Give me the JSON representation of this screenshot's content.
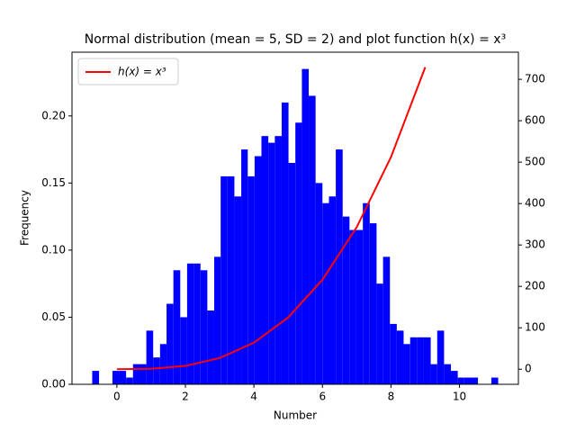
{
  "chart_data": {
    "type": "histogram",
    "title": "Normal distribution (mean = 5, SD = 2) and plot function h(x) = x³",
    "x_label": "Number",
    "y_label": "Frequency",
    "color": "#0000ff",
    "bins": [
      -0.72,
      -0.52,
      -0.33,
      -0.13,
      0.07,
      0.27,
      0.47,
      0.66,
      0.86,
      1.06,
      1.26,
      1.45,
      1.65,
      1.85,
      2.05,
      2.24,
      2.44,
      2.64,
      2.84,
      3.03,
      3.23,
      3.43,
      3.63,
      3.82,
      4.02,
      4.22,
      4.42,
      4.61,
      4.81,
      5.01,
      5.21,
      5.4,
      5.6,
      5.8,
      6.0,
      6.19,
      6.39,
      6.59,
      6.79,
      6.98,
      7.18,
      7.38,
      7.58,
      7.77,
      7.97,
      8.17,
      8.37,
      8.56,
      8.76,
      8.96,
      9.16,
      9.35,
      9.55,
      9.75,
      9.95,
      10.14,
      10.34,
      10.54,
      10.74,
      10.93,
      11.13
    ],
    "values": [
      0.01,
      0,
      0,
      0.01,
      0.01,
      0.005,
      0.015,
      0.015,
      0.04,
      0.02,
      0.03,
      0.06,
      0.085,
      0.05,
      0.09,
      0.09,
      0.085,
      0.055,
      0.095,
      0.155,
      0.155,
      0.14,
      0.175,
      0.155,
      0.17,
      0.185,
      0.18,
      0.185,
      0.21,
      0.165,
      0.195,
      0.235,
      0.215,
      0.15,
      0.135,
      0.14,
      0.175,
      0.125,
      0.115,
      0.115,
      0.135,
      0.12,
      0.075,
      0.095,
      0.045,
      0.04,
      0.03,
      0.035,
      0.035,
      0.035,
      0.015,
      0.04,
      0.015,
      0.01,
      0.005,
      0.005,
      0.005,
      0,
      0,
      0.005
    ],
    "series": [
      {
        "type": "line",
        "name": "h(x) = x³",
        "color": "#ff0000",
        "axis": "y2",
        "x": [
          0,
          1,
          2,
          3,
          4,
          5,
          6,
          7,
          8,
          9
        ],
        "values": [
          0,
          1,
          8,
          27,
          64,
          125,
          216,
          343,
          512,
          729
        ]
      }
    ],
    "legend": "upper left",
    "xlim": [
      -1.31,
      11.72
    ],
    "xticks": [
      0,
      2,
      4,
      6,
      8,
      10
    ],
    "ylim": [
      0,
      0.2475
    ],
    "yticks": [
      {
        "value": 0,
        "label": "0.00"
      },
      {
        "value": 0.05,
        "label": "0.05"
      },
      {
        "value": 0.1,
        "label": "0.10"
      },
      {
        "value": 0.15,
        "label": "0.15"
      },
      {
        "value": 0.2,
        "label": "0.20"
      }
    ],
    "y2lim": [
      -36.45,
      765.45
    ],
    "y2ticks": [
      0,
      100,
      200,
      300,
      400,
      500,
      600,
      700
    ]
  }
}
